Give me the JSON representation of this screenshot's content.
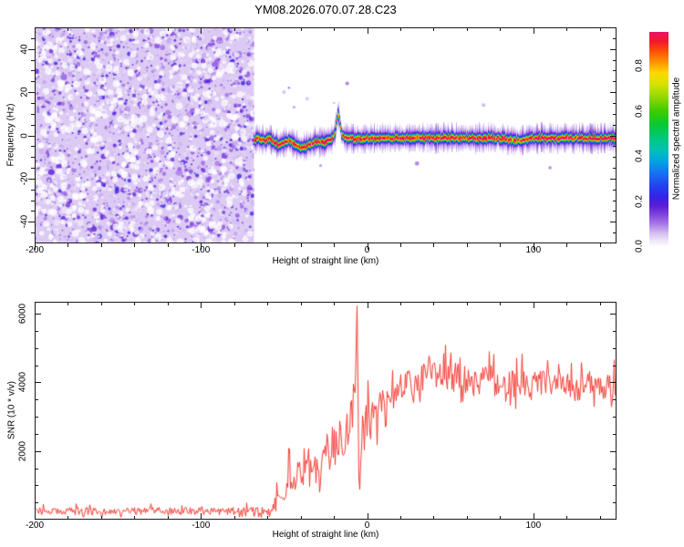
{
  "title": "YM08.2026.070.07.28.C23",
  "colors": {
    "background": "#ffffff",
    "axis": "#1a1a1a",
    "snr_line": "#f23b32",
    "text": "#000000"
  },
  "colormap": [
    [
      0.0,
      "#ffffff"
    ],
    [
      0.03,
      "#ece2f8"
    ],
    [
      0.06,
      "#d4bef2"
    ],
    [
      0.1,
      "#a979e6"
    ],
    [
      0.14,
      "#8347dd"
    ],
    [
      0.18,
      "#5a1ed9"
    ],
    [
      0.22,
      "#3422e8"
    ],
    [
      0.27,
      "#2343f2"
    ],
    [
      0.33,
      "#1775f2"
    ],
    [
      0.38,
      "#00a6e0"
    ],
    [
      0.43,
      "#00c2b4"
    ],
    [
      0.48,
      "#00c87d"
    ],
    [
      0.54,
      "#06c934"
    ],
    [
      0.6,
      "#3ecb00"
    ],
    [
      0.66,
      "#8ed800"
    ],
    [
      0.72,
      "#d6e300"
    ],
    [
      0.77,
      "#ffd900"
    ],
    [
      0.82,
      "#ff9100"
    ],
    [
      0.87,
      "#fb4c09"
    ],
    [
      0.91,
      "#f4172c"
    ],
    [
      0.95,
      "#ec1262"
    ],
    [
      1.0,
      "#e80f72"
    ]
  ],
  "chart_data": [
    {
      "type": "heatmap",
      "name": "spectrogram",
      "xlabel": "Height of straight line (km)",
      "ylabel": "Frequency (Hz)",
      "xlim": [
        -200,
        150
      ],
      "ylim": [
        -50,
        50
      ],
      "xticks": [
        {
          "v": -200,
          "label": "-200"
        },
        {
          "v": -100,
          "label": "-100"
        },
        {
          "v": 0,
          "label": "0"
        },
        {
          "v": 100,
          "label": "100"
        }
      ],
      "yticks": [
        {
          "v": 40,
          "label": "40"
        },
        {
          "v": 20,
          "label": "20"
        },
        {
          "v": 0,
          "label": "0"
        },
        {
          "v": -20,
          "label": "-20"
        },
        {
          "v": -40,
          "label": "-40"
        }
      ],
      "xminor": 20,
      "yminor": 5,
      "noise_region": {
        "x_start_km": -200,
        "x_end_km": -68,
        "amplitude_range": [
          0.0,
          0.2
        ]
      },
      "signal_trace": [
        [
          -68,
          -1.8,
          0.92
        ],
        [
          -65,
          -1.4,
          0.9
        ],
        [
          -62,
          -2.2,
          0.88
        ],
        [
          -59,
          -1.3,
          0.93
        ],
        [
          -57,
          -2.6,
          0.9
        ],
        [
          -55,
          -3.9,
          0.86
        ],
        [
          -53,
          -4.3,
          0.93
        ],
        [
          -51,
          -3.3,
          0.9
        ],
        [
          -49,
          -2.3,
          0.94
        ],
        [
          -47,
          -2.1,
          0.9
        ],
        [
          -45,
          -3.1,
          0.92
        ],
        [
          -43,
          -4.3,
          0.86
        ],
        [
          -41,
          -5.3,
          0.9
        ],
        [
          -39,
          -5.7,
          0.94
        ],
        [
          -37,
          -5.2,
          0.9
        ],
        [
          -35,
          -4.1,
          0.86
        ],
        [
          -33,
          -3.1,
          0.9
        ],
        [
          -31,
          -2.5,
          0.92
        ],
        [
          -29,
          -2.9,
          0.9
        ],
        [
          -27,
          -3.1,
          0.88
        ],
        [
          -25,
          -2.7,
          0.9
        ],
        [
          -23,
          -2.3,
          0.92
        ],
        [
          -21,
          -1.5,
          0.82
        ],
        [
          -19.5,
          1.8,
          0.7
        ],
        [
          -18.6,
          7.2,
          0.62
        ],
        [
          -17.8,
          10.5,
          0.58
        ],
        [
          -17,
          8.2,
          0.62
        ],
        [
          -16.2,
          3.6,
          0.72
        ],
        [
          -15.4,
          0.6,
          0.84
        ],
        [
          -14,
          -0.8,
          0.9
        ],
        [
          -12,
          -1.3,
          0.92
        ],
        [
          -10,
          -0.9,
          0.9
        ],
        [
          -8,
          -1.5,
          0.88
        ],
        [
          -6,
          -1.1,
          0.9
        ],
        [
          -4,
          -1.7,
          0.86
        ],
        [
          -2,
          -1.3,
          0.9
        ],
        [
          0,
          -0.9,
          0.92
        ],
        [
          4,
          -1.3,
          0.9
        ],
        [
          8,
          -1.0,
          0.94
        ],
        [
          12,
          -1.2,
          0.9
        ],
        [
          16,
          -1.0,
          0.88
        ],
        [
          20,
          -1.1,
          0.92
        ],
        [
          24,
          -0.9,
          0.9
        ],
        [
          28,
          -1.1,
          0.94
        ],
        [
          32,
          -1.0,
          0.9
        ],
        [
          36,
          -1.1,
          0.93
        ],
        [
          40,
          -1.0,
          0.9
        ],
        [
          44,
          -1.1,
          0.92
        ],
        [
          48,
          -1.0,
          0.9
        ],
        [
          52,
          -1.1,
          0.88
        ],
        [
          56,
          -1.0,
          0.93
        ],
        [
          60,
          -1.0,
          0.95
        ],
        [
          64,
          -1.0,
          0.96
        ],
        [
          68,
          -1.0,
          0.96
        ],
        [
          72,
          -1.1,
          0.92
        ],
        [
          76,
          -1.0,
          0.88
        ],
        [
          80,
          -1.2,
          0.84
        ],
        [
          84,
          -1.7,
          0.8
        ],
        [
          88,
          -2.1,
          0.76
        ],
        [
          92,
          -2.2,
          0.8
        ],
        [
          95,
          -1.8,
          0.88
        ],
        [
          98,
          -1.3,
          0.92
        ],
        [
          102,
          -1.0,
          0.95
        ],
        [
          106,
          -1.0,
          0.96
        ],
        [
          110,
          -1.0,
          0.96
        ],
        [
          114,
          -1.1,
          0.94
        ],
        [
          118,
          -1.0,
          0.9
        ],
        [
          122,
          -1.1,
          0.88
        ],
        [
          126,
          -1.0,
          0.9
        ],
        [
          130,
          -1.1,
          0.92
        ],
        [
          134,
          -1.0,
          0.9
        ],
        [
          138,
          -1.1,
          0.9
        ],
        [
          142,
          -1.0,
          0.92
        ],
        [
          146,
          -1.1,
          0.9
        ],
        [
          150,
          -1.0,
          0.9
        ]
      ],
      "speckles": [
        [
          -50,
          20
        ],
        [
          -47,
          22
        ],
        [
          -44,
          13
        ],
        [
          -36,
          17
        ],
        [
          -28,
          -14
        ],
        [
          -20,
          15
        ],
        [
          -12,
          24
        ],
        [
          30,
          -13
        ],
        [
          70,
          14
        ],
        [
          110,
          -15
        ]
      ],
      "colorbar": {
        "label": "Normalized spectral amplitude",
        "vmax": 0.95,
        "ticks": [
          {
            "v": 0.0,
            "label": "0.0"
          },
          {
            "v": 0.2,
            "label": "0.2"
          },
          {
            "v": 0.4,
            "label": "0.4"
          },
          {
            "v": 0.6,
            "label": "0.6"
          },
          {
            "v": 0.8,
            "label": "0.8"
          }
        ]
      }
    },
    {
      "type": "line",
      "name": "snr",
      "xlabel": "Height of straight line (km)",
      "ylabel": "SNR (10 * v/v)",
      "xlim": [
        -200,
        150
      ],
      "ylim": [
        0,
        6350
      ],
      "xticks": [
        {
          "v": -200,
          "label": "-200"
        },
        {
          "v": -100,
          "label": "-100"
        },
        {
          "v": 0,
          "label": "0"
        },
        {
          "v": 100,
          "label": "100"
        }
      ],
      "yticks": [
        {
          "v": 6000,
          "label": "6000"
        },
        {
          "v": 4000,
          "label": "4000"
        },
        {
          "v": 2000,
          "label": "2000"
        }
      ],
      "xminor": 20,
      "yminor": 500,
      "series": [
        {
          "name": "SNR",
          "color": "#f23b32",
          "keypoints": [
            [
              -200,
              250,
              110
            ],
            [
              -150,
              250,
              110
            ],
            [
              -100,
              250,
              110
            ],
            [
              -70,
              250,
              110
            ],
            [
              -60,
              260,
              120
            ],
            [
              -57,
              350,
              150
            ],
            [
              -55,
              650,
              280
            ],
            [
              -53,
              850,
              320
            ],
            [
              -51,
              700,
              280
            ],
            [
              -49,
              950,
              320
            ],
            [
              -47.8,
              1000,
              250
            ],
            [
              -47.2,
              3100,
              150
            ],
            [
              -46.6,
              900,
              250
            ],
            [
              -45,
              850,
              300
            ],
            [
              -43,
              1050,
              350
            ],
            [
              -41,
              1450,
              400
            ],
            [
              -39,
              1150,
              350
            ],
            [
              -37,
              1550,
              420
            ],
            [
              -35,
              1250,
              380
            ],
            [
              -33,
              1750,
              450
            ],
            [
              -31,
              1350,
              400
            ],
            [
              -29,
              1100,
              350
            ],
            [
              -27,
              1650,
              450
            ],
            [
              -25,
              2150,
              470
            ],
            [
              -23,
              1750,
              420
            ],
            [
              -21,
              2350,
              500
            ],
            [
              -19,
              1950,
              460
            ],
            [
              -17,
              2450,
              500
            ],
            [
              -15,
              2100,
              460
            ],
            [
              -13,
              2650,
              500
            ],
            [
              -11,
              2350,
              470
            ],
            [
              -9,
              2900,
              520
            ],
            [
              -7.6,
              3600,
              600
            ],
            [
              -6.9,
              5100,
              300
            ],
            [
              -6.4,
              6300,
              80
            ],
            [
              -5.9,
              4700,
              500
            ],
            [
              -5.4,
              1600,
              600
            ],
            [
              -5,
              230,
              90
            ],
            [
              -4.5,
              1500,
              500
            ],
            [
              -3.5,
              2700,
              600
            ],
            [
              -2,
              2300,
              550
            ],
            [
              -0.5,
              3200,
              550
            ],
            [
              1,
              2700,
              500
            ],
            [
              3,
              3300,
              480
            ],
            [
              5,
              2900,
              480
            ],
            [
              7,
              3200,
              450
            ],
            [
              9,
              3500,
              430
            ],
            [
              11,
              3300,
              430
            ],
            [
              13,
              3700,
              420
            ],
            [
              15,
              3500,
              420
            ],
            [
              18,
              3800,
              420
            ],
            [
              21,
              3950,
              430
            ],
            [
              25,
              4050,
              430
            ],
            [
              30,
              4100,
              440
            ],
            [
              35,
              4200,
              440
            ],
            [
              40,
              4150,
              430
            ],
            [
              45,
              4250,
              440
            ],
            [
              50,
              4200,
              430
            ],
            [
              55,
              4150,
              420
            ],
            [
              60,
              4100,
              430
            ],
            [
              65,
              4050,
              420
            ],
            [
              70,
              4100,
              410
            ],
            [
              75,
              4000,
              420
            ],
            [
              80,
              4050,
              410
            ],
            [
              85,
              3950,
              430
            ],
            [
              90,
              4000,
              420
            ],
            [
              95,
              3900,
              410
            ],
            [
              100,
              4050,
              430
            ],
            [
              105,
              3950,
              410
            ],
            [
              110,
              4000,
              420
            ],
            [
              115,
              3900,
              430
            ],
            [
              120,
              3950,
              410
            ],
            [
              125,
              3850,
              420
            ],
            [
              130,
              3900,
              430
            ],
            [
              135,
              3950,
              410
            ],
            [
              140,
              3850,
              430
            ],
            [
              145,
              3900,
              420
            ],
            [
              150,
              3850,
              420
            ]
          ]
        }
      ]
    }
  ]
}
